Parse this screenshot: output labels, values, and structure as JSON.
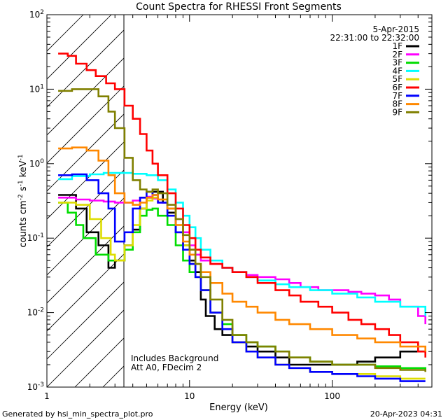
{
  "chart_data": {
    "type": "line",
    "title": "Count Spectra for RHESSI Front Segments",
    "xlabel": "Energy (keV)",
    "ylabel": {
      "base": "counts cm",
      "exp1": "-2",
      "mid": " s",
      "exp2": "-1",
      "tail": " keV",
      "exp3": "-1"
    },
    "x_scale": "log",
    "y_scale": "log",
    "xlim": [
      1,
      500
    ],
    "ylim": [
      0.001,
      100
    ],
    "x_ticks": [
      {
        "value": 1,
        "label": "1"
      },
      {
        "value": 10,
        "label": "10"
      },
      {
        "value": 100,
        "label": "100"
      }
    ],
    "y_ticks": [
      {
        "value": 0.001,
        "base": "10",
        "exp": "-3"
      },
      {
        "value": 0.01,
        "base": "10",
        "exp": "-2"
      },
      {
        "value": 0.1,
        "base": "10",
        "exp": "-1"
      },
      {
        "value": 1,
        "base": "10",
        "exp": "0"
      },
      {
        "value": 10,
        "base": "10",
        "exp": "1"
      },
      {
        "value": 100,
        "base": "10",
        "exp": "2"
      }
    ],
    "hatched_region_keV": [
      1,
      3
    ],
    "date": "5-Apr-2015",
    "time_range": "22:31:00 to 22:32:00",
    "annotations": [
      "Includes Background",
      "Att A0, FDecim 2"
    ],
    "footer_left": "Generated by hsi_min_spectra_plot.pro",
    "footer_right": "20-Apr-2023 04:31",
    "series": [
      {
        "name": "1F",
        "color": "#000000",
        "points": [
          [
            1.2,
            0.38
          ],
          [
            1.6,
            0.25
          ],
          [
            1.9,
            0.12
          ],
          [
            2.3,
            0.08
          ],
          [
            2.7,
            0.04
          ],
          [
            3,
            0.05
          ],
          [
            3.5,
            0.08
          ],
          [
            4,
            0.13
          ],
          [
            4.5,
            0.25
          ],
          [
            5,
            0.35
          ],
          [
            5.5,
            0.42
          ],
          [
            6,
            0.42
          ],
          [
            6.5,
            0.3
          ],
          [
            7,
            0.22
          ],
          [
            8,
            0.12
          ],
          [
            9,
            0.08
          ],
          [
            10,
            0.05
          ],
          [
            11,
            0.035
          ],
          [
            12,
            0.015
          ],
          [
            13,
            0.009
          ],
          [
            15,
            0.006
          ],
          [
            17,
            0.005
          ],
          [
            20,
            0.004
          ],
          [
            25,
            0.0035
          ],
          [
            30,
            0.003
          ],
          [
            40,
            0.0025
          ],
          [
            50,
            0.002
          ],
          [
            70,
            0.002
          ],
          [
            100,
            0.002
          ],
          [
            150,
            0.0022
          ],
          [
            200,
            0.0025
          ],
          [
            300,
            0.003
          ],
          [
            450,
            0.003
          ]
        ]
      },
      {
        "name": "2F",
        "color": "#ff00ff",
        "points": [
          [
            1.2,
            0.35
          ],
          [
            1.6,
            0.33
          ],
          [
            2,
            0.32
          ],
          [
            2.5,
            0.31
          ],
          [
            3,
            0.3
          ],
          [
            3.5,
            0.3
          ],
          [
            4,
            0.32
          ],
          [
            4.5,
            0.35
          ],
          [
            5,
            0.36
          ],
          [
            5.5,
            0.34
          ],
          [
            6,
            0.3
          ],
          [
            7,
            0.25
          ],
          [
            8,
            0.18
          ],
          [
            9,
            0.12
          ],
          [
            10,
            0.08
          ],
          [
            11,
            0.06
          ],
          [
            12,
            0.05
          ],
          [
            14,
            0.045
          ],
          [
            17,
            0.04
          ],
          [
            20,
            0.035
          ],
          [
            25,
            0.032
          ],
          [
            30,
            0.03
          ],
          [
            40,
            0.028
          ],
          [
            50,
            0.025
          ],
          [
            60,
            0.022
          ],
          [
            80,
            0.02
          ],
          [
            100,
            0.02
          ],
          [
            130,
            0.019
          ],
          [
            160,
            0.018
          ],
          [
            200,
            0.017
          ],
          [
            250,
            0.015
          ],
          [
            300,
            0.012
          ],
          [
            400,
            0.009
          ],
          [
            450,
            0.007
          ]
        ]
      },
      {
        "name": "3F",
        "color": "#00dd00",
        "points": [
          [
            1.2,
            0.3
          ],
          [
            1.4,
            0.22
          ],
          [
            1.6,
            0.15
          ],
          [
            1.8,
            0.1
          ],
          [
            2.2,
            0.06
          ],
          [
            2.7,
            0.05
          ],
          [
            3,
            0.05
          ],
          [
            3.5,
            0.07
          ],
          [
            4,
            0.12
          ],
          [
            4.5,
            0.2
          ],
          [
            5,
            0.24
          ],
          [
            5.5,
            0.25
          ],
          [
            6,
            0.2
          ],
          [
            7,
            0.15
          ],
          [
            8,
            0.08
          ],
          [
            9,
            0.05
          ],
          [
            10,
            0.035
          ],
          [
            11,
            0.03
          ],
          [
            12,
            0.02
          ],
          [
            14,
            0.01
          ],
          [
            17,
            0.007
          ],
          [
            20,
            0.005
          ],
          [
            25,
            0.004
          ],
          [
            30,
            0.0035
          ],
          [
            40,
            0.003
          ],
          [
            50,
            0.0025
          ],
          [
            70,
            0.0022
          ],
          [
            100,
            0.002
          ],
          [
            150,
            0.002
          ],
          [
            200,
            0.0019
          ],
          [
            300,
            0.0018
          ],
          [
            450,
            0.0017
          ]
        ]
      },
      {
        "name": "4F",
        "color": "#00ffff",
        "points": [
          [
            1.2,
            0.62
          ],
          [
            1.5,
            0.68
          ],
          [
            2,
            0.72
          ],
          [
            2.5,
            0.75
          ],
          [
            3,
            0.75
          ],
          [
            4,
            0.73
          ],
          [
            5,
            0.7
          ],
          [
            6,
            0.6
          ],
          [
            7,
            0.45
          ],
          [
            8,
            0.3
          ],
          [
            9,
            0.2
          ],
          [
            10,
            0.14
          ],
          [
            11,
            0.1
          ],
          [
            12,
            0.07
          ],
          [
            14,
            0.05
          ],
          [
            17,
            0.04
          ],
          [
            20,
            0.035
          ],
          [
            25,
            0.03
          ],
          [
            30,
            0.027
          ],
          [
            40,
            0.024
          ],
          [
            50,
            0.022
          ],
          [
            70,
            0.02
          ],
          [
            100,
            0.018
          ],
          [
            150,
            0.016
          ],
          [
            200,
            0.014
          ],
          [
            300,
            0.012
          ],
          [
            450,
            0.009
          ]
        ]
      },
      {
        "name": "5F",
        "color": "#dddd00",
        "points": [
          [
            1.2,
            0.3
          ],
          [
            1.6,
            0.28
          ],
          [
            2,
            0.18
          ],
          [
            2.4,
            0.1
          ],
          [
            2.8,
            0.06
          ],
          [
            3,
            0.05
          ],
          [
            3.5,
            0.08
          ],
          [
            4,
            0.15
          ],
          [
            4.5,
            0.25
          ],
          [
            5,
            0.32
          ],
          [
            5.5,
            0.35
          ],
          [
            6,
            0.33
          ],
          [
            7,
            0.25
          ],
          [
            8,
            0.15
          ],
          [
            9,
            0.08
          ],
          [
            10,
            0.045
          ],
          [
            11,
            0.03
          ],
          [
            12,
            0.02
          ],
          [
            14,
            0.01
          ],
          [
            17,
            0.006
          ],
          [
            20,
            0.004
          ],
          [
            25,
            0.003
          ],
          [
            30,
            0.0025
          ],
          [
            40,
            0.002
          ],
          [
            50,
            0.0018
          ],
          [
            70,
            0.0016
          ],
          [
            100,
            0.0015
          ],
          [
            150,
            0.0015
          ],
          [
            200,
            0.0014
          ],
          [
            300,
            0.0013
          ],
          [
            450,
            0.0013
          ]
        ]
      },
      {
        "name": "6F",
        "color": "#ff0000",
        "points": [
          [
            1.2,
            30
          ],
          [
            1.4,
            28
          ],
          [
            1.6,
            22
          ],
          [
            1.9,
            18
          ],
          [
            2.2,
            15
          ],
          [
            2.6,
            12
          ],
          [
            3,
            10
          ],
          [
            3.5,
            6
          ],
          [
            4,
            4
          ],
          [
            4.5,
            2.5
          ],
          [
            5,
            1.5
          ],
          [
            5.5,
            1
          ],
          [
            6,
            0.7
          ],
          [
            7,
            0.4
          ],
          [
            8,
            0.25
          ],
          [
            9,
            0.15
          ],
          [
            10,
            0.1
          ],
          [
            11,
            0.07
          ],
          [
            12,
            0.055
          ],
          [
            14,
            0.045
          ],
          [
            17,
            0.04
          ],
          [
            20,
            0.035
          ],
          [
            25,
            0.03
          ],
          [
            30,
            0.025
          ],
          [
            40,
            0.02
          ],
          [
            50,
            0.017
          ],
          [
            60,
            0.014
          ],
          [
            80,
            0.012
          ],
          [
            100,
            0.01
          ],
          [
            130,
            0.008
          ],
          [
            160,
            0.007
          ],
          [
            200,
            0.006
          ],
          [
            250,
            0.005
          ],
          [
            300,
            0.004
          ],
          [
            400,
            0.003
          ],
          [
            450,
            0.0025
          ]
        ]
      },
      {
        "name": "7F",
        "color": "#0000ff",
        "points": [
          [
            1.2,
            0.7
          ],
          [
            1.5,
            0.72
          ],
          [
            1.9,
            0.6
          ],
          [
            2.3,
            0.4
          ],
          [
            2.7,
            0.25
          ],
          [
            3,
            0.09
          ],
          [
            3.5,
            0.12
          ],
          [
            4,
            0.25
          ],
          [
            4.5,
            0.35
          ],
          [
            5,
            0.42
          ],
          [
            5.5,
            0.38
          ],
          [
            6,
            0.3
          ],
          [
            7,
            0.2
          ],
          [
            8,
            0.12
          ],
          [
            9,
            0.07
          ],
          [
            10,
            0.045
          ],
          [
            11,
            0.03
          ],
          [
            12,
            0.02
          ],
          [
            14,
            0.01
          ],
          [
            17,
            0.006
          ],
          [
            20,
            0.004
          ],
          [
            25,
            0.003
          ],
          [
            30,
            0.0025
          ],
          [
            40,
            0.002
          ],
          [
            50,
            0.0018
          ],
          [
            70,
            0.0016
          ],
          [
            100,
            0.0015
          ],
          [
            150,
            0.0014
          ],
          [
            200,
            0.0013
          ],
          [
            300,
            0.0012
          ],
          [
            450,
            0.0012
          ]
        ]
      },
      {
        "name": "8F",
        "color": "#ff8800",
        "points": [
          [
            1.2,
            1.6
          ],
          [
            1.5,
            1.65
          ],
          [
            1.9,
            1.5
          ],
          [
            2.3,
            1.1
          ],
          [
            2.7,
            0.7
          ],
          [
            3,
            0.4
          ],
          [
            3.5,
            0.3
          ],
          [
            4,
            0.28
          ],
          [
            4.5,
            0.3
          ],
          [
            5,
            0.35
          ],
          [
            5.5,
            0.38
          ],
          [
            6,
            0.33
          ],
          [
            7,
            0.25
          ],
          [
            8,
            0.15
          ],
          [
            9,
            0.09
          ],
          [
            10,
            0.06
          ],
          [
            11,
            0.045
          ],
          [
            12,
            0.035
          ],
          [
            14,
            0.025
          ],
          [
            17,
            0.018
          ],
          [
            20,
            0.014
          ],
          [
            25,
            0.012
          ],
          [
            30,
            0.01
          ],
          [
            40,
            0.008
          ],
          [
            50,
            0.007
          ],
          [
            70,
            0.006
          ],
          [
            100,
            0.005
          ],
          [
            150,
            0.0045
          ],
          [
            200,
            0.004
          ],
          [
            300,
            0.0035
          ],
          [
            450,
            0.003
          ]
        ]
      },
      {
        "name": "9F",
        "color": "#808000",
        "points": [
          [
            1.2,
            9.5
          ],
          [
            1.5,
            10
          ],
          [
            1.9,
            10
          ],
          [
            2.3,
            8
          ],
          [
            2.7,
            5
          ],
          [
            3,
            3
          ],
          [
            3.5,
            1.2
          ],
          [
            4,
            0.6
          ],
          [
            4.5,
            0.45
          ],
          [
            5,
            0.42
          ],
          [
            5.5,
            0.45
          ],
          [
            6,
            0.4
          ],
          [
            7,
            0.28
          ],
          [
            8,
            0.18
          ],
          [
            9,
            0.11
          ],
          [
            10,
            0.07
          ],
          [
            11,
            0.045
          ],
          [
            12,
            0.03
          ],
          [
            14,
            0.015
          ],
          [
            17,
            0.008
          ],
          [
            20,
            0.005
          ],
          [
            25,
            0.004
          ],
          [
            30,
            0.0035
          ],
          [
            40,
            0.003
          ],
          [
            50,
            0.0025
          ],
          [
            70,
            0.0022
          ],
          [
            100,
            0.002
          ],
          [
            150,
            0.002
          ],
          [
            200,
            0.0018
          ],
          [
            300,
            0.0017
          ],
          [
            450,
            0.0016
          ]
        ]
      }
    ]
  }
}
